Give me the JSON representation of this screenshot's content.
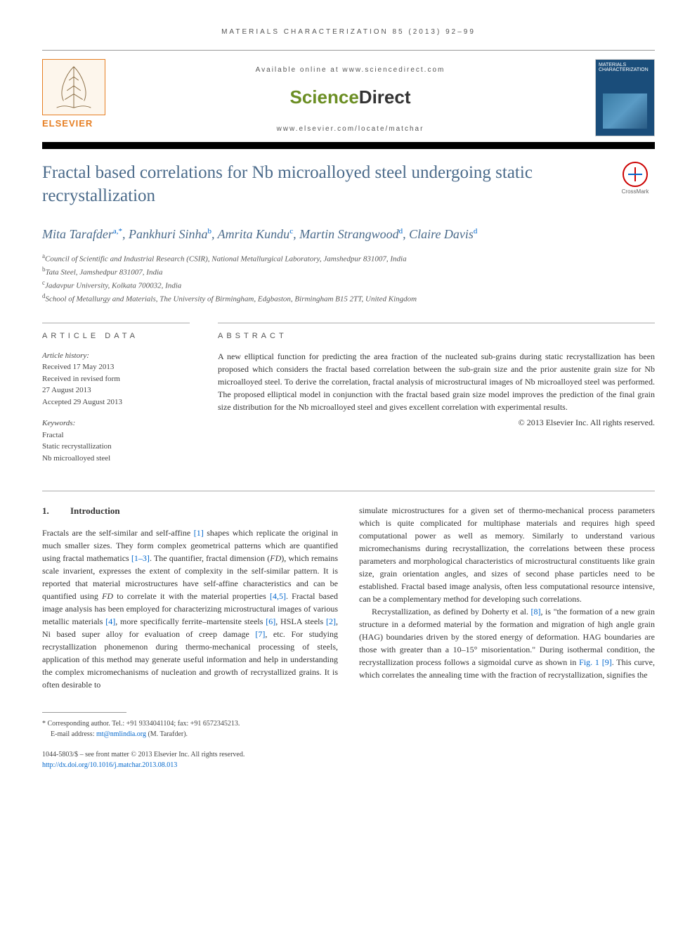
{
  "header": {
    "citation": "MATERIALS CHARACTERIZATION 85 (2013) 92–99"
  },
  "topbar": {
    "elsevier_label": "ELSEVIER",
    "available_online": "Available online at www.sciencedirect.com",
    "sciencedirect_science": "Science",
    "sciencedirect_direct": "Direct",
    "journal_url": "www.elsevier.com/locate/matchar",
    "journal_cover_title": "MATERIALS CHARACTERIZATION"
  },
  "title": "Fractal based correlations for Nb microalloyed steel undergoing static recrystallization",
  "crossmark_label": "CrossMark",
  "authors_html": "Mita Tarafder<sup>a,*</sup>, Pankhuri Sinha<sup>b</sup>, Amrita Kundu<sup>c</sup>, Martin Strangwood<sup>d</sup>, Claire Davis<sup>d</sup>",
  "affiliations": [
    {
      "sup": "a",
      "text": "Council of Scientific and Industrial Research (CSIR), National Metallurgical Laboratory, Jamshedpur 831007, India"
    },
    {
      "sup": "b",
      "text": "Tata Steel, Jamshedpur 831007, India"
    },
    {
      "sup": "c",
      "text": "Jadavpur University, Kolkata 700032, India"
    },
    {
      "sup": "d",
      "text": "School of Metallurgy and Materials, The University of Birmingham, Edgbaston, Birmingham B15 2TT, United Kingdom"
    }
  ],
  "article_data": {
    "label": "ARTICLE DATA",
    "history_label": "Article history:",
    "history": [
      "Received 17 May 2013",
      "Received in revised form",
      "27 August 2013",
      "Accepted 29 August 2013"
    ],
    "keywords_label": "Keywords:",
    "keywords": [
      "Fractal",
      "Static recrystallization",
      "Nb microalloyed steel"
    ]
  },
  "abstract": {
    "label": "ABSTRACT",
    "text": "A new elliptical function for predicting the area fraction of the nucleated sub-grains during static recrystallization has been proposed which considers the fractal based correlation between the sub-grain size and the prior austenite grain size for Nb microalloyed steel. To derive the correlation, fractal analysis of microstructural images of Nb microalloyed steel was performed. The proposed elliptical model in conjunction with the fractal based grain size model improves the prediction of the final grain size distribution for the Nb microalloyed steel and gives excellent correlation with experimental results.",
    "copyright": "© 2013 Elsevier Inc. All rights reserved."
  },
  "body": {
    "section_number": "1.",
    "section_title": "Introduction",
    "col1": "Fractals are the self-similar and self-affine [1] shapes which replicate the original in much smaller sizes. They form complex geometrical patterns which are quantified using fractal mathematics [1–3]. The quantifier, fractal dimension (FD), which remains scale invarient, expresses the extent of complexity in the self-similar pattern. It is reported that material microstructures have self-affine characteristics and can be quantified using FD to correlate it with the material properties [4,5]. Fractal based image analysis has been employed for characterizing microstructural images of various metallic materials [4], more specifically ferrite–martensite steels [6], HSLA steels [2], Ni based super alloy for evaluation of creep damage [7], etc. For studying recrystallization phonemenon during thermo-mechanical processing of steels, application of this method may generate useful information and help in understanding the complex micromechanisms of nucleation and growth of recrystallized grains. It is often desirable to",
    "col2_p1": "simulate microstructures for a given set of thermo-mechanical process parameters which is quite complicated for multiphase materials and requires high speed computational power as well as memory. Similarly to understand various micromechanisms during recrystallization, the correlations between these process parameters and morphological characteristics of microstructural constituents like grain size, grain orientation angles, and sizes of second phase particles need to be established. Fractal based image analysis, often less computational resource intensive, can be a complementary method for developing such correlations.",
    "col2_p2": "Recrystallization, as defined by Doherty et al. [8], is \"the formation of a new grain structure in a deformed material by the formation and migration of high angle grain (HAG) boundaries driven by the stored energy of deformation. HAG boundaries are those with greater than a 10–15° misorientation.\" During isothermal condition, the recrystallization process follows a sigmoidal curve as shown in Fig. 1 [9]. This curve, which correlates the annealing time with the fraction of recrystallization, signifies the"
  },
  "footnote": {
    "corresponding": "* Corresponding author. Tel.: +91 9334041104; fax: +91 6572345213.",
    "email_label": "E-mail address: ",
    "email": "mt@nmlindia.org",
    "email_author": " (M. Tarafder)."
  },
  "bottom": {
    "issn": "1044-5803/$ – see front matter © 2013 Elsevier Inc. All rights reserved.",
    "doi": "http://dx.doi.org/10.1016/j.matchar.2013.08.013"
  },
  "colors": {
    "title_color": "#4a6a8a",
    "link_color": "#0066cc",
    "elsevier_orange": "#e67e22",
    "sd_green": "#6b8e23"
  }
}
